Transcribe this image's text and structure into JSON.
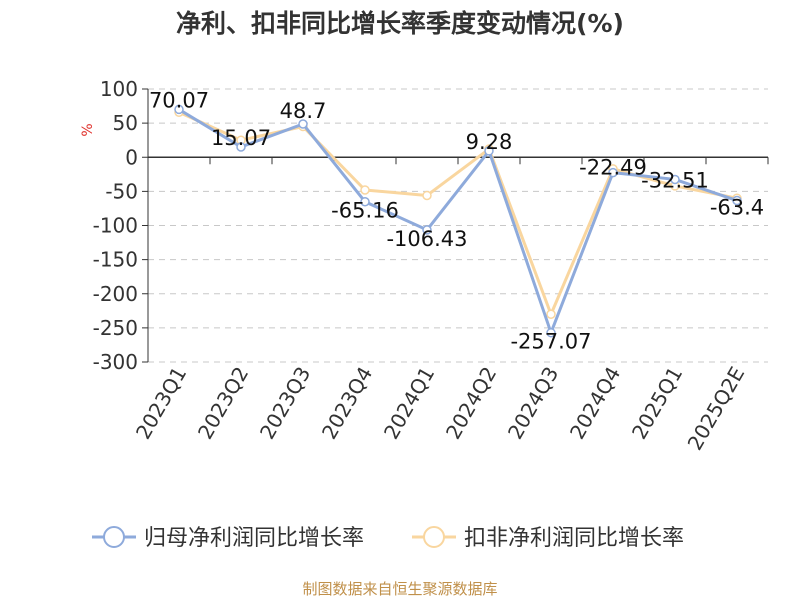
{
  "title": "净利、扣非同比增长率季度变动情况(%)",
  "source": "制图数据来自恒生聚源数据库",
  "chart_data": {
    "type": "line",
    "ylabel": "%",
    "ylim": [
      -300,
      100
    ],
    "yticks": [
      100,
      50,
      0,
      -50,
      -100,
      -150,
      -200,
      -250,
      -300
    ],
    "grid": true,
    "legend_position": "bottom",
    "categories": [
      "2023Q1",
      "2023Q2",
      "2023Q3",
      "2023Q4",
      "2024Q1",
      "2024Q2",
      "2024Q3",
      "2024Q4",
      "2025Q1",
      "2025Q2E"
    ],
    "series": [
      {
        "name": "归母净利润同比增长率",
        "color": "#8eaadb",
        "values": [
          70.07,
          15.07,
          48.7,
          -65.16,
          -106.43,
          9.28,
          -257.07,
          -22.49,
          -32.51,
          -63.4
        ],
        "labels": [
          "70.07",
          "15.07",
          "48.7",
          "-65.16",
          "-106.43",
          "9.28",
          "-257.07",
          "-22.49",
          "-32.51",
          "-63.4"
        ]
      },
      {
        "name": "扣非净利润同比增长率",
        "color": "#f9d69f",
        "values": [
          66,
          25,
          45,
          -48,
          -56,
          12,
          -230,
          -17,
          -42,
          -60
        ]
      }
    ]
  }
}
